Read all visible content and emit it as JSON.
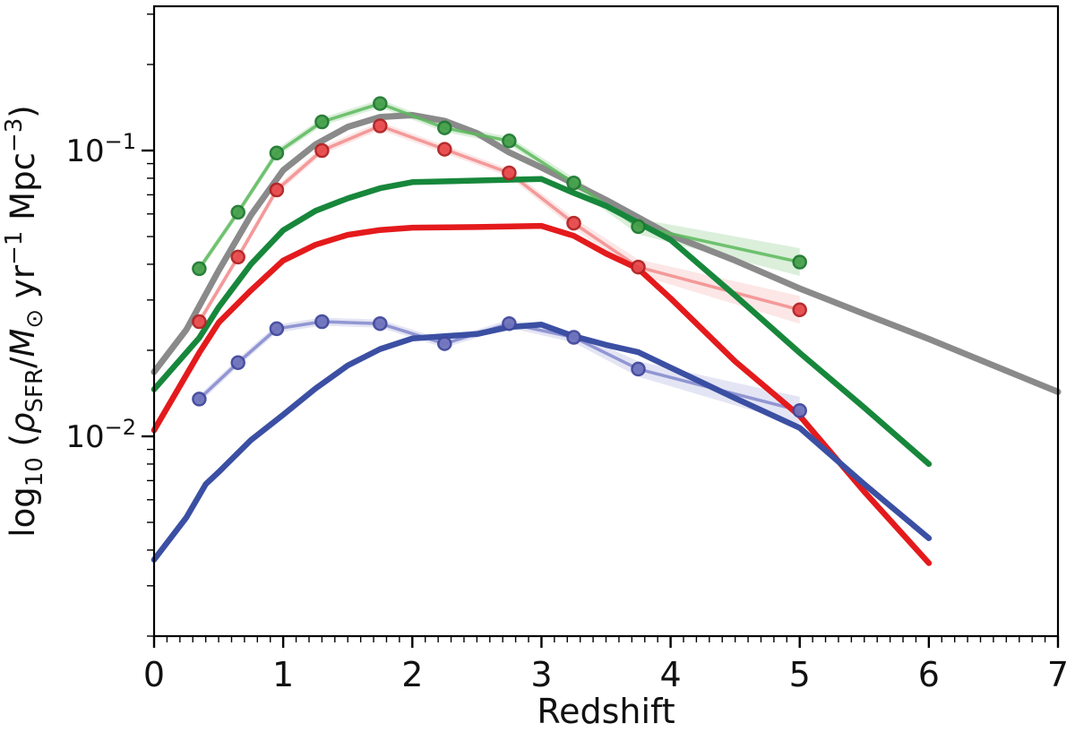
{
  "chart_data": {
    "type": "line",
    "title": "",
    "xlabel": "Redshift",
    "ylabel_segments": [
      {
        "text": "log",
        "style": "normal"
      },
      {
        "text": "10",
        "style": "sub"
      },
      {
        "text": " (",
        "style": "normal"
      },
      {
        "text": "ρ",
        "style": "italic"
      },
      {
        "text": "SFR",
        "style": "sub"
      },
      {
        "text": "/",
        "style": "normal"
      },
      {
        "text": "M",
        "style": "italic"
      },
      {
        "text": "⊙",
        "style": "sub"
      },
      {
        "text": " yr",
        "style": "normal"
      },
      {
        "text": "−1",
        "style": "sup"
      },
      {
        "text": " Mpc",
        "style": "normal"
      },
      {
        "text": "−3",
        "style": "sup"
      },
      {
        "text": ")",
        "style": "normal"
      }
    ],
    "xlim": [
      0,
      7
    ],
    "ylim": [
      0.002,
      0.318
    ],
    "y_scale": "log",
    "grid": false,
    "legend": "none",
    "x_ticks": [
      0,
      1,
      2,
      3,
      4,
      5,
      6,
      7
    ],
    "x_tick_labels": [
      "0",
      "1",
      "2",
      "3",
      "4",
      "5",
      "6",
      "7"
    ],
    "x_minor_step": 0.1,
    "y_major_ticks": [
      {
        "base": "10",
        "exp": "−1",
        "value": 0.1
      },
      {
        "base": "10",
        "exp": "−2",
        "value": 0.01
      }
    ],
    "colors": {
      "gray_model": "#8a8a8a",
      "green_thick": "#17873b",
      "red_thick": "#e41a1c",
      "blue_thick": "#3b4fa3",
      "green_light": "#5cb85c",
      "red_light": "#f28b8b",
      "blue_light": "#8288cc"
    },
    "series": [
      {
        "name": "gray-model-curve",
        "color": "#8a8a8a",
        "width": 7,
        "marker": false,
        "band": false,
        "opacity": 1,
        "x": [
          0,
          0.25,
          0.5,
          0.75,
          1,
          1.25,
          1.5,
          1.75,
          2,
          2.25,
          2.5,
          2.75,
          3,
          3.5,
          4,
          4.5,
          5,
          5.5,
          6,
          6.5,
          7
        ],
        "y": [
          0.0168,
          0.0236,
          0.038,
          0.0594,
          0.0853,
          0.105,
          0.121,
          0.131,
          0.133,
          0.127,
          0.115,
          0.0985,
          0.0872,
          0.0672,
          0.0506,
          0.0412,
          0.0329,
          0.0268,
          0.0219,
          0.0177,
          0.0143
        ]
      },
      {
        "name": "green-data-series",
        "color": "#5cb85c",
        "marker_fill": "#46a04c",
        "marker_edge": "#1e7a30",
        "width": 3.5,
        "marker": true,
        "band": true,
        "opacity": 0.85,
        "x": [
          0.35,
          0.65,
          0.95,
          1.3,
          1.75,
          2.25,
          2.75,
          3.25,
          3.75,
          5
        ],
        "y": [
          0.0386,
          0.0608,
          0.098,
          0.126,
          0.146,
          0.12,
          0.108,
          0.077,
          0.0542,
          0.0407
        ]
      },
      {
        "name": "red-data-series",
        "color": "#f28b8b",
        "marker_fill": "#e84a4d",
        "marker_edge": "#b22222",
        "width": 3.5,
        "marker": true,
        "band": true,
        "opacity": 0.85,
        "x": [
          0.35,
          0.65,
          0.95,
          1.3,
          1.75,
          2.25,
          2.75,
          3.25,
          3.75,
          5
        ],
        "y": [
          0.0252,
          0.0424,
          0.0728,
          0.1,
          0.122,
          0.101,
          0.0835,
          0.0557,
          0.0391,
          0.0277
        ]
      },
      {
        "name": "blue-data-series",
        "color": "#8288cc",
        "marker_fill": "#6f74bd",
        "marker_edge": "#41489c",
        "width": 3.5,
        "marker": true,
        "band": true,
        "opacity": 0.85,
        "x": [
          0.35,
          0.65,
          0.95,
          1.3,
          1.75,
          2.25,
          2.75,
          3.25,
          3.75,
          5
        ],
        "y": [
          0.0135,
          0.0181,
          0.0238,
          0.0252,
          0.0248,
          0.0211,
          0.0248,
          0.0222,
          0.0172,
          0.0123
        ]
      },
      {
        "name": "green-thick-curve",
        "color": "#17873b",
        "width": 6.5,
        "marker": false,
        "band": false,
        "opacity": 1,
        "x": [
          0,
          0.35,
          0.5,
          0.75,
          1,
          1.25,
          1.5,
          1.75,
          2,
          2.5,
          3,
          3.25,
          3.5,
          4,
          4.5,
          5,
          5.5,
          6
        ],
        "y": [
          0.0146,
          0.0221,
          0.0283,
          0.04,
          0.0526,
          0.0615,
          0.068,
          0.0738,
          0.0775,
          0.0785,
          0.0795,
          0.071,
          0.064,
          0.0487,
          0.0311,
          0.0196,
          0.0126,
          0.008
        ]
      },
      {
        "name": "red-thick-curve",
        "color": "#e41a1c",
        "width": 6.5,
        "marker": false,
        "band": false,
        "opacity": 1,
        "x": [
          0,
          0.35,
          0.5,
          0.75,
          1,
          1.25,
          1.5,
          1.75,
          2,
          2.5,
          3,
          3.25,
          3.5,
          3.75,
          4,
          4.5,
          5,
          5.5,
          6
        ],
        "y": [
          0.0105,
          0.0196,
          0.025,
          0.0324,
          0.0412,
          0.0468,
          0.0507,
          0.0527,
          0.0537,
          0.054,
          0.0545,
          0.0503,
          0.0436,
          0.0386,
          0.0304,
          0.0183,
          0.0118,
          0.0064,
          0.0036
        ]
      },
      {
        "name": "blue-thick-curve",
        "color": "#3b4fa3",
        "width": 6.5,
        "marker": false,
        "band": false,
        "opacity": 1,
        "x": [
          0,
          0.25,
          0.4,
          0.5,
          0.75,
          1,
          1.25,
          1.5,
          1.75,
          2,
          2.25,
          2.5,
          2.75,
          3,
          3.25,
          3.5,
          3.75,
          4,
          4.5,
          5,
          5.5,
          6
        ],
        "y": [
          0.0037,
          0.0052,
          0.0068,
          0.0075,
          0.0097,
          0.0119,
          0.0147,
          0.0177,
          0.0202,
          0.022,
          0.0224,
          0.0228,
          0.0241,
          0.0246,
          0.0224,
          0.0209,
          0.0197,
          0.0174,
          0.0136,
          0.0107,
          0.0068,
          0.0044
        ]
      }
    ]
  }
}
